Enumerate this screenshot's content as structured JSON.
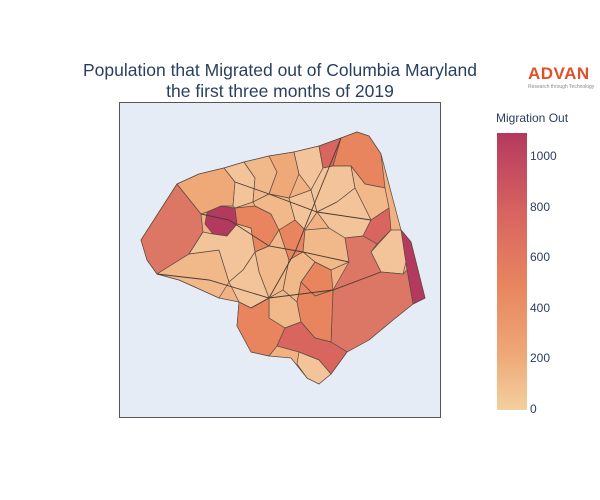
{
  "title": {
    "line1": "Population that Migrated out of Columbia Maryland",
    "line2": "the first three months of 2019"
  },
  "logo": {
    "wordmark": "ADVAN",
    "tagline": "Research through Technology",
    "color": "#e2502a"
  },
  "colorbar": {
    "title": "Migration Out",
    "min": 0,
    "max": 1100,
    "ticks": [
      "0",
      "200",
      "400",
      "600",
      "800",
      "1000"
    ],
    "colors": [
      "#f3d09e",
      "#efa877",
      "#e8855f",
      "#d8665f",
      "#b4395f"
    ]
  },
  "map": {
    "background": "#e5ecf6",
    "border_color": "#555555"
  }
}
